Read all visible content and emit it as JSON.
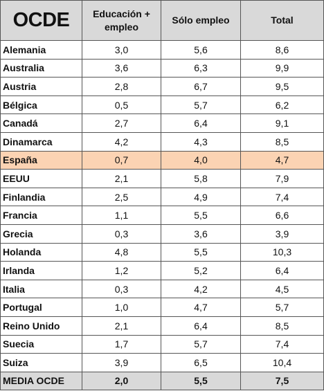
{
  "table": {
    "corner": "OCDE",
    "columns": [
      "Educación + empleo",
      "Sólo empleo",
      "Total"
    ],
    "rows": [
      {
        "country": "Alemania",
        "edu_emp": "3,0",
        "emp": "5,6",
        "total": "8,6"
      },
      {
        "country": "Australia",
        "edu_emp": "3,6",
        "emp": "6,3",
        "total": "9,9"
      },
      {
        "country": "Austria",
        "edu_emp": "2,8",
        "emp": "6,7",
        "total": "9,5"
      },
      {
        "country": "Bélgica",
        "edu_emp": "0,5",
        "emp": "5,7",
        "total": "6,2"
      },
      {
        "country": "Canadá",
        "edu_emp": "2,7",
        "emp": "6,4",
        "total": "9,1"
      },
      {
        "country": "Dinamarca",
        "edu_emp": "4,2",
        "emp": "4,3",
        "total": "8,5"
      },
      {
        "country": "España",
        "edu_emp": "0,7",
        "emp": "4,0",
        "total": "4,7",
        "highlight": true
      },
      {
        "country": "EEUU",
        "edu_emp": "2,1",
        "emp": "5,8",
        "total": "7,9"
      },
      {
        "country": "Finlandia",
        "edu_emp": "2,5",
        "emp": "4,9",
        "total": "7,4"
      },
      {
        "country": "Francia",
        "edu_emp": "1,1",
        "emp": "5,5",
        "total": "6,6"
      },
      {
        "country": "Grecia",
        "edu_emp": "0,3",
        "emp": "3,6",
        "total": "3,9"
      },
      {
        "country": "Holanda",
        "edu_emp": "4,8",
        "emp": "5,5",
        "total": "10,3"
      },
      {
        "country": "Irlanda",
        "edu_emp": "1,2",
        "emp": "5,2",
        "total": "6,4"
      },
      {
        "country": "Italia",
        "edu_emp": "0,3",
        "emp": "4,2",
        "total": "4,5"
      },
      {
        "country": "Portugal",
        "edu_emp": "1,0",
        "emp": "4,7",
        "total": "5,7"
      },
      {
        "country": "Reino Unido",
        "edu_emp": "2,1",
        "emp": "6,4",
        "total": "8,5"
      },
      {
        "country": "Suecia",
        "edu_emp": "1,7",
        "emp": "5,7",
        "total": "7,4"
      },
      {
        "country": "Suiza",
        "edu_emp": "3,9",
        "emp": "6,5",
        "total": "10,4"
      }
    ],
    "average": {
      "label": "MEDIA OCDE",
      "edu_emp": "2,0",
      "emp": "5,5",
      "total": "7,5"
    }
  },
  "colors": {
    "header_bg": "#d9d9d9",
    "highlight_bg": "#fbd3b3",
    "average_bg": "#d9d9d9",
    "border": "#555555"
  }
}
